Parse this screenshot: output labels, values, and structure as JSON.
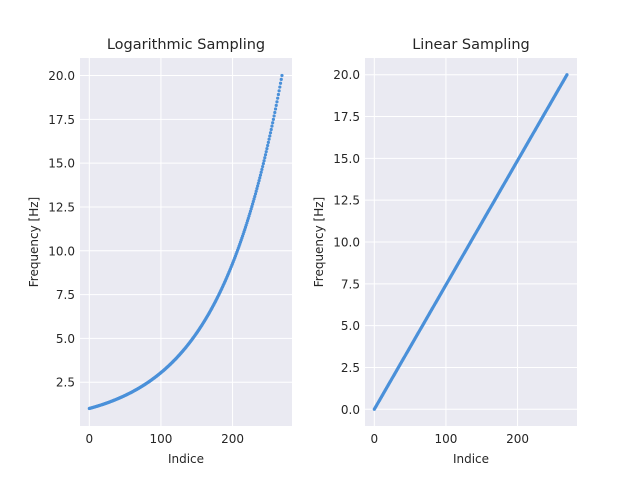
{
  "chart_data": [
    {
      "type": "scatter",
      "title": "Logarithmic Sampling",
      "xlabel": "Indice",
      "ylabel": "Frequency [Hz]",
      "xlim": [
        -13,
        283
      ],
      "ylim": [
        -0.0,
        21.0
      ],
      "xticks": [
        0,
        100,
        200
      ],
      "yticks": [
        2.5,
        5.0,
        7.5,
        10.0,
        12.5,
        15.0,
        17.5,
        20.0
      ],
      "ytick_labels": [
        "2.5",
        "5.0",
        "7.5",
        "10.0",
        "12.5",
        "15.0",
        "17.5",
        "20.0"
      ],
      "n_points": 270,
      "sampling": "logarithmic",
      "y_start": 1.0,
      "y_end": 20.0,
      "color": "#4a90d9",
      "grid": true,
      "background": "#eaeaf2"
    },
    {
      "type": "scatter",
      "title": "Linear Sampling",
      "xlabel": "Indice",
      "ylabel": "Frequency [Hz]",
      "xlim": [
        -13,
        283
      ],
      "ylim": [
        -1.0,
        21.0
      ],
      "xticks": [
        0,
        100,
        200
      ],
      "yticks": [
        0.0,
        2.5,
        5.0,
        7.5,
        10.0,
        12.5,
        15.0,
        17.5,
        20.0
      ],
      "ytick_labels": [
        "0.0",
        "2.5",
        "5.0",
        "7.5",
        "10.0",
        "12.5",
        "15.0",
        "17.5",
        "20.0"
      ],
      "n_points": 270,
      "sampling": "linear",
      "y_start": 0.0,
      "y_end": 20.0,
      "color": "#4a90d9",
      "grid": true,
      "background": "#eaeaf2"
    }
  ]
}
